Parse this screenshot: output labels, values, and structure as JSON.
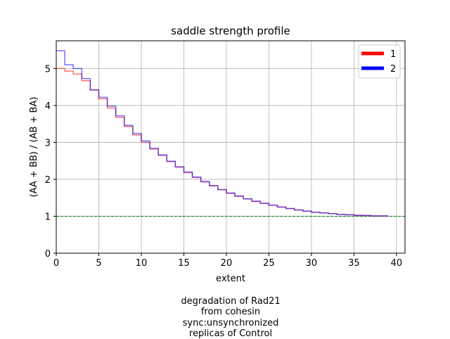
{
  "chart_data": {
    "type": "line",
    "title": "saddle strength profile",
    "xlabel": "extent",
    "ylabel": "(AA + BB) / (AB + BA)",
    "xlim": [
      0,
      41
    ],
    "ylim": [
      0,
      5.75
    ],
    "xticks": [
      0,
      5,
      10,
      15,
      20,
      25,
      30,
      35,
      40
    ],
    "yticks": [
      0,
      1,
      2,
      3,
      4,
      5
    ],
    "grid": true,
    "legend_position": "top-right",
    "reference_line": {
      "y": 1,
      "color": "#008000",
      "style": "dashed"
    },
    "step": "post",
    "x": [
      0,
      1,
      2,
      3,
      4,
      5,
      6,
      7,
      8,
      9,
      10,
      11,
      12,
      13,
      14,
      15,
      16,
      17,
      18,
      19,
      20,
      21,
      22,
      23,
      24,
      25,
      26,
      27,
      28,
      29,
      30,
      31,
      32,
      33,
      34,
      35,
      36,
      37,
      38,
      39
    ],
    "series": [
      {
        "name": "1",
        "color": "#ff0000",
        "values": [
          5.0,
          4.93,
          4.85,
          4.67,
          4.42,
          4.18,
          3.93,
          3.68,
          3.43,
          3.2,
          3.0,
          2.82,
          2.65,
          2.48,
          2.33,
          2.18,
          2.05,
          1.93,
          1.82,
          1.72,
          1.62,
          1.54,
          1.47,
          1.4,
          1.35,
          1.3,
          1.25,
          1.21,
          1.17,
          1.14,
          1.11,
          1.09,
          1.07,
          1.05,
          1.04,
          1.03,
          1.02,
          1.01,
          1.01,
          1.01
        ]
      },
      {
        "name": "2",
        "color": "#0000ff",
        "values": [
          5.48,
          5.1,
          5.0,
          4.73,
          4.42,
          4.22,
          3.98,
          3.72,
          3.46,
          3.24,
          3.04,
          2.84,
          2.66,
          2.49,
          2.34,
          2.2,
          2.06,
          1.94,
          1.83,
          1.72,
          1.63,
          1.55,
          1.47,
          1.41,
          1.35,
          1.3,
          1.25,
          1.21,
          1.17,
          1.14,
          1.11,
          1.09,
          1.07,
          1.05,
          1.04,
          1.02,
          1.02,
          1.01,
          1.01,
          1.0
        ]
      }
    ]
  },
  "caption": {
    "lines": [
      "degradation of Rad21",
      "from cohesin",
      "sync:unsynchronized",
      "replicas of Control"
    ]
  }
}
